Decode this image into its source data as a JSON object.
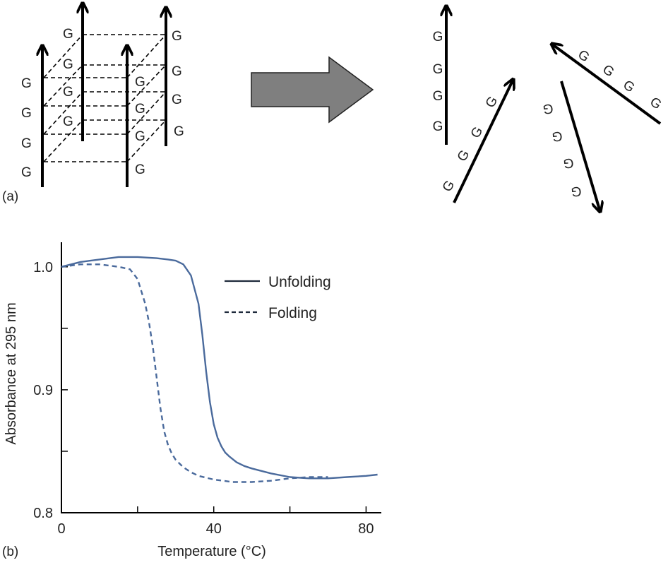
{
  "panels": {
    "a": {
      "label": "(a)",
      "base": "G",
      "colors": {
        "arrow": "#000000",
        "bond": "#000000",
        "transition_arrow": "#7f7f7f"
      }
    },
    "b": {
      "label": "(b)"
    }
  },
  "chart_data": {
    "type": "line",
    "xlabel": "Temperature (°C)",
    "ylabel": "Absorbance at 295 nm",
    "xlim": [
      0,
      84
    ],
    "ylim": [
      0.8,
      1.02
    ],
    "x_ticks": [
      0,
      40,
      80
    ],
    "x_minor_ticks": [
      20,
      60
    ],
    "y_ticks": [
      0.8,
      0.9,
      1.0
    ],
    "y_tick_labels": [
      "0.8",
      "0.9",
      "1.0"
    ],
    "y_minor_ticks": [
      0.85,
      0.95
    ],
    "grid": false,
    "legend_position": "top-right",
    "series": [
      {
        "name": "Unfolding",
        "style": "solid",
        "color": "#4a6a9c",
        "x": [
          0,
          5,
          10,
          15,
          20,
          25,
          28,
          30,
          32,
          34,
          36,
          37,
          38,
          39,
          40,
          41,
          42,
          43,
          44,
          46,
          48,
          50,
          55,
          60,
          65,
          70,
          75,
          80,
          83
        ],
        "y": [
          1.0,
          1.004,
          1.006,
          1.008,
          1.008,
          1.007,
          1.006,
          1.005,
          1.002,
          0.993,
          0.97,
          0.945,
          0.915,
          0.89,
          0.872,
          0.861,
          0.854,
          0.849,
          0.846,
          0.841,
          0.838,
          0.836,
          0.832,
          0.829,
          0.828,
          0.828,
          0.829,
          0.83,
          0.831
        ]
      },
      {
        "name": "Folding",
        "style": "dashed",
        "color": "#4a6a9c",
        "x": [
          0,
          5,
          10,
          15,
          18,
          20,
          22,
          23,
          24,
          25,
          26,
          27,
          28,
          29,
          30,
          32,
          34,
          36,
          40,
          45,
          50,
          55,
          60,
          65,
          70
        ],
        "y": [
          1.0,
          1.002,
          1.002,
          1.0,
          0.998,
          0.99,
          0.97,
          0.955,
          0.935,
          0.91,
          0.885,
          0.866,
          0.855,
          0.848,
          0.843,
          0.837,
          0.833,
          0.83,
          0.827,
          0.825,
          0.825,
          0.826,
          0.828,
          0.829,
          0.829
        ]
      }
    ]
  }
}
